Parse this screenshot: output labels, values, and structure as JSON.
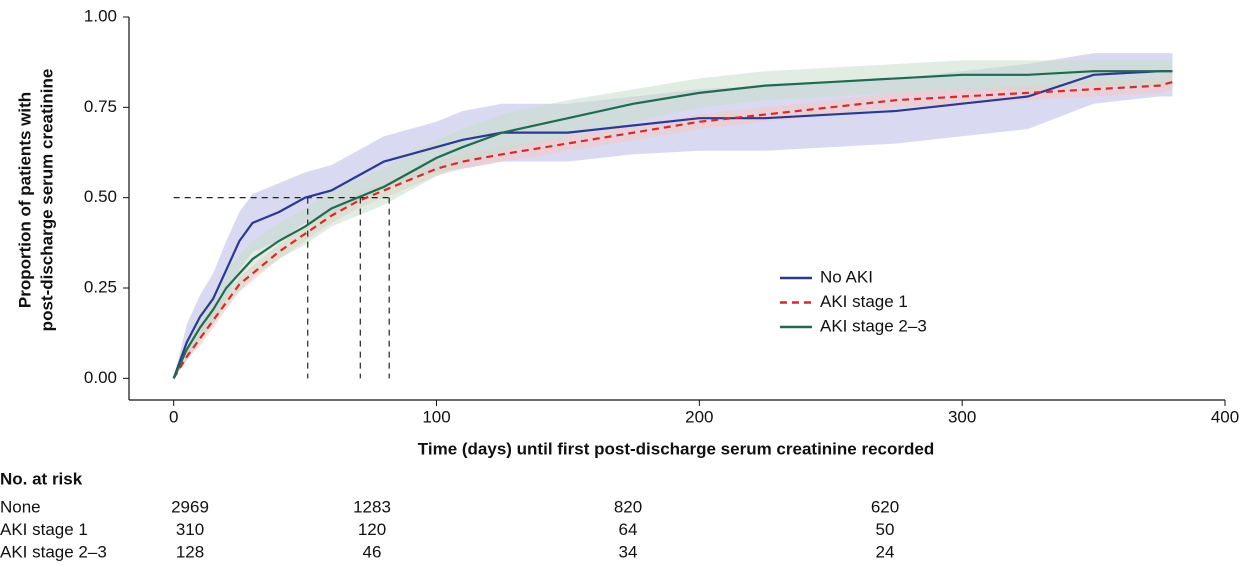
{
  "chart_data": {
    "type": "line",
    "xlabel": "Time (days) until first post-discharge serum creatinine recorded",
    "ylabel": [
      "Proportion of patients with",
      "post-discharge serum creatinine"
    ],
    "xlim": [
      -17,
      400
    ],
    "ylim": [
      -0.06,
      1.0
    ],
    "xticks": [
      0,
      100,
      200,
      300,
      400
    ],
    "yticks": [
      {
        "value": 0,
        "label": "0.00"
      },
      {
        "value": 0.25,
        "label": "0.25"
      },
      {
        "value": 0.5,
        "label": "0.50"
      },
      {
        "value": 0.75,
        "label": "0.75"
      },
      {
        "value": 1,
        "label": "1.00"
      }
    ],
    "x": [
      0,
      5,
      10,
      15,
      20,
      25,
      30,
      40,
      50,
      60,
      70,
      80,
      90,
      100,
      110,
      125,
      150,
      175,
      200,
      225,
      250,
      275,
      300,
      325,
      350,
      375,
      380
    ],
    "series": [
      {
        "name": "No AKI",
        "color": "#2b3990",
        "dash": false,
        "band_color": "#b9b9e6",
        "values": [
          0,
          0.1,
          0.17,
          0.22,
          0.3,
          0.38,
          0.43,
          0.46,
          0.5,
          0.52,
          0.56,
          0.6,
          0.62,
          0.64,
          0.66,
          0.68,
          0.68,
          0.7,
          0.72,
          0.72,
          0.73,
          0.74,
          0.76,
          0.78,
          0.84,
          0.85,
          0.85
        ],
        "lower": [
          0,
          0.05,
          0.11,
          0.15,
          0.22,
          0.3,
          0.35,
          0.38,
          0.43,
          0.45,
          0.49,
          0.53,
          0.55,
          0.57,
          0.58,
          0.6,
          0.6,
          0.62,
          0.63,
          0.63,
          0.64,
          0.65,
          0.67,
          0.69,
          0.76,
          0.78,
          0.78
        ],
        "upper": [
          0,
          0.15,
          0.23,
          0.29,
          0.38,
          0.46,
          0.51,
          0.54,
          0.57,
          0.59,
          0.63,
          0.67,
          0.69,
          0.71,
          0.74,
          0.76,
          0.76,
          0.78,
          0.8,
          0.81,
          0.82,
          0.83,
          0.85,
          0.87,
          0.9,
          0.9,
          0.9
        ]
      },
      {
        "name": "AKI stage 1",
        "color": "#d62b2b",
        "dash": true,
        "band_color": "#f4c6c2",
        "values": [
          0,
          0.06,
          0.11,
          0.16,
          0.21,
          0.26,
          0.29,
          0.35,
          0.4,
          0.45,
          0.49,
          0.52,
          0.55,
          0.58,
          0.6,
          0.62,
          0.65,
          0.68,
          0.71,
          0.73,
          0.75,
          0.77,
          0.78,
          0.79,
          0.8,
          0.81,
          0.82
        ],
        "lower": [
          0,
          0.05,
          0.09,
          0.14,
          0.19,
          0.24,
          0.27,
          0.33,
          0.38,
          0.43,
          0.47,
          0.5,
          0.53,
          0.56,
          0.58,
          0.6,
          0.63,
          0.66,
          0.69,
          0.71,
          0.73,
          0.75,
          0.76,
          0.77,
          0.78,
          0.79,
          0.8
        ],
        "upper": [
          0,
          0.07,
          0.13,
          0.18,
          0.23,
          0.28,
          0.31,
          0.37,
          0.42,
          0.47,
          0.51,
          0.54,
          0.57,
          0.6,
          0.62,
          0.64,
          0.67,
          0.7,
          0.73,
          0.75,
          0.77,
          0.79,
          0.8,
          0.81,
          0.82,
          0.83,
          0.84
        ]
      },
      {
        "name": "AKI stage 2–3",
        "color": "#1f6b50",
        "dash": false,
        "band_color": "#c9dccb",
        "values": [
          0,
          0.08,
          0.14,
          0.19,
          0.25,
          0.29,
          0.33,
          0.38,
          0.42,
          0.47,
          0.5,
          0.53,
          0.57,
          0.61,
          0.64,
          0.68,
          0.72,
          0.76,
          0.79,
          0.81,
          0.82,
          0.83,
          0.84,
          0.84,
          0.85,
          0.85,
          0.85
        ],
        "lower": [
          0,
          0.05,
          0.1,
          0.15,
          0.2,
          0.24,
          0.28,
          0.33,
          0.37,
          0.42,
          0.45,
          0.48,
          0.52,
          0.56,
          0.59,
          0.63,
          0.67,
          0.71,
          0.75,
          0.77,
          0.78,
          0.79,
          0.8,
          0.8,
          0.81,
          0.81,
          0.81
        ],
        "upper": [
          0,
          0.11,
          0.18,
          0.23,
          0.3,
          0.34,
          0.38,
          0.43,
          0.47,
          0.52,
          0.55,
          0.58,
          0.62,
          0.66,
          0.69,
          0.73,
          0.77,
          0.8,
          0.83,
          0.85,
          0.86,
          0.87,
          0.88,
          0.88,
          0.88,
          0.88,
          0.88
        ]
      }
    ],
    "median_line": {
      "y": 0.5,
      "x": [
        51,
        71,
        82
      ]
    },
    "risk_table": {
      "title": "No. at risk",
      "rows": [
        {
          "label": "None",
          "counts": [
            2969,
            1283,
            820,
            620
          ]
        },
        {
          "label": "AKI stage 1",
          "counts": [
            310,
            120,
            64,
            50
          ]
        },
        {
          "label": "AKI stage 2–3",
          "counts": [
            128,
            46,
            34,
            24
          ]
        }
      ]
    }
  }
}
